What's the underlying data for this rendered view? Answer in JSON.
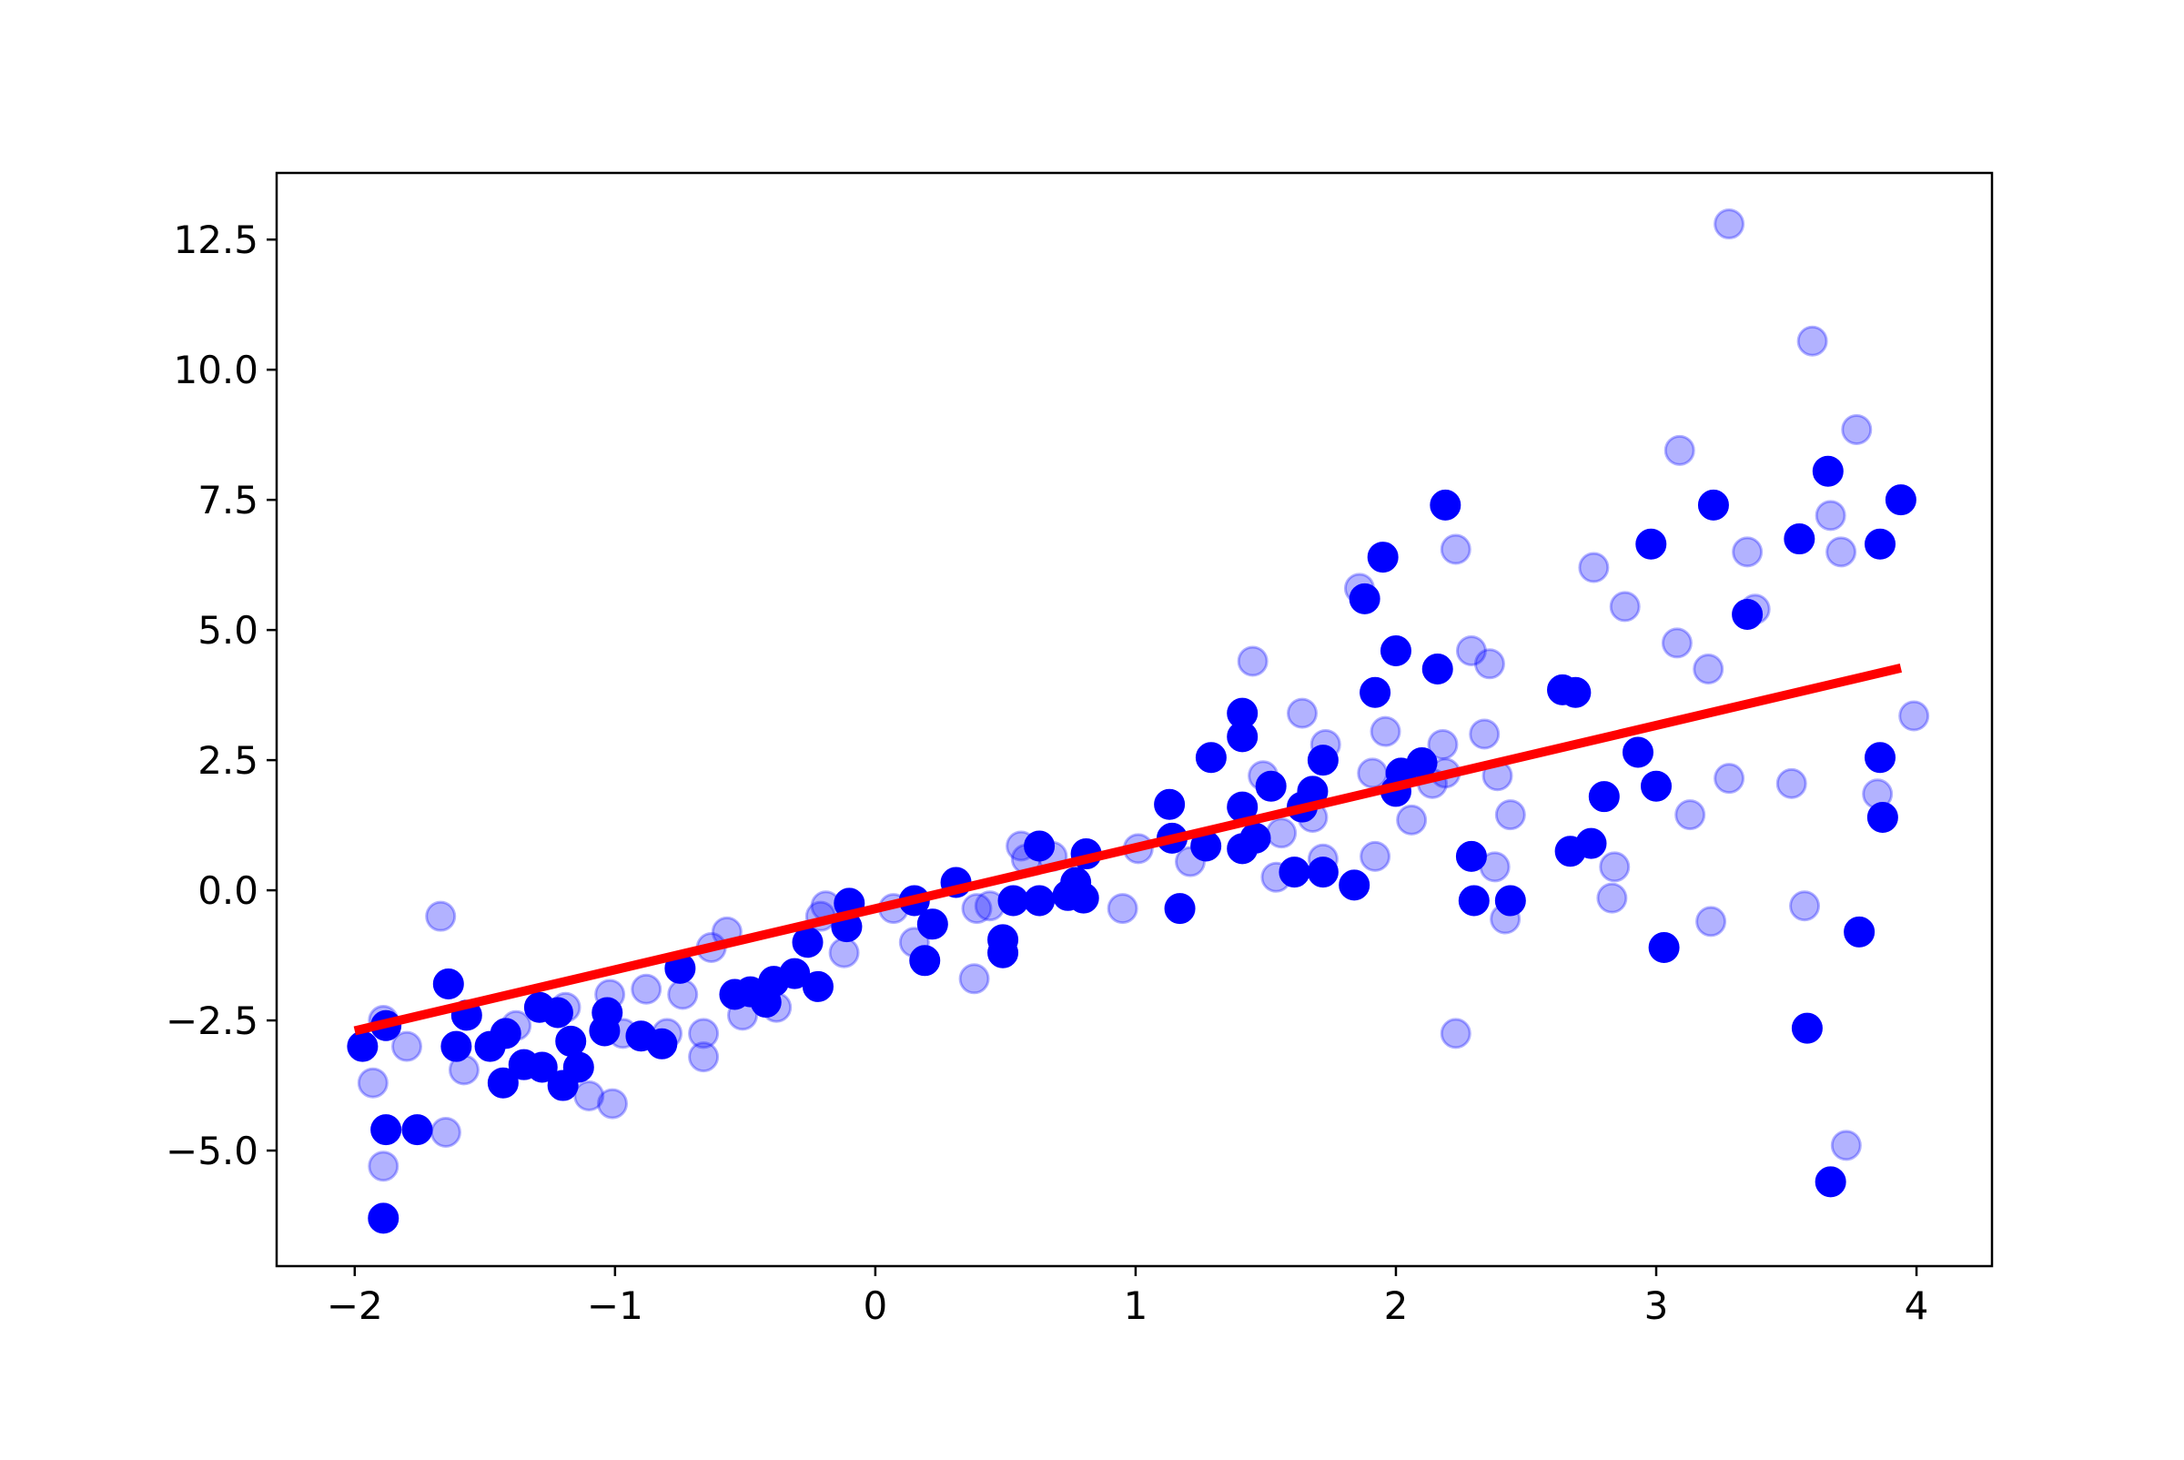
{
  "chart_data": {
    "type": "scatter",
    "xlim": [
      -2.3,
      4.29
    ],
    "ylim": [
      -7.22,
      13.78
    ],
    "xticks": [
      {
        "value": -2,
        "label": "−2"
      },
      {
        "value": -1,
        "label": "−1"
      },
      0,
      1,
      2,
      3,
      4
    ],
    "yticks": [
      {
        "value": -5,
        "label": "−5.0"
      },
      {
        "value": -2.5,
        "label": "−2.5"
      },
      {
        "value": 0,
        "label": "0.0"
      },
      2.5,
      {
        "value": 5,
        "label": "5.0"
      },
      7.5,
      {
        "value": 10,
        "label": "10.0"
      },
      12.5
    ],
    "series": [
      {
        "color": "blue",
        "alpha": 0.3,
        "x": [
          -1.93,
          -1.89,
          -1.89,
          -1.8,
          -1.67,
          -1.65,
          -1.58,
          -1.38,
          -1.19,
          -1.1,
          -1.02,
          -1.01,
          -0.97,
          -0.88,
          -0.8,
          -0.74,
          -0.66,
          -0.66,
          -0.63,
          -0.57,
          -0.51,
          -0.38,
          -0.21,
          -0.19,
          -0.12,
          0.07,
          0.15,
          0.38,
          0.39,
          0.44,
          0.56,
          0.58,
          0.68,
          0.95,
          1.01,
          1.21,
          1.45,
          1.49,
          1.54,
          1.56,
          1.64,
          1.68,
          1.72,
          1.73,
          1.86,
          1.91,
          1.92,
          1.96,
          2.06,
          2.14,
          2.18,
          2.19,
          2.23,
          2.23,
          2.29,
          2.34,
          2.36,
          2.38,
          2.39,
          2.42,
          2.44,
          2.76,
          2.84,
          2.83,
          2.88,
          3.08,
          3.09,
          3.13,
          3.2,
          3.21,
          3.28,
          3.28,
          3.35,
          3.38,
          3.52,
          3.57,
          3.6,
          3.67,
          3.71,
          3.73,
          3.77,
          3.85,
          3.99
        ],
        "y": [
          -3.7,
          -5.3,
          -2.5,
          -3.0,
          -0.5,
          -4.65,
          -3.45,
          -2.6,
          -2.25,
          -3.95,
          -2.0,
          -4.1,
          -2.75,
          -1.9,
          -2.75,
          -2.0,
          -2.75,
          -3.2,
          -1.1,
          -0.8,
          -2.4,
          -2.25,
          -0.5,
          -0.3,
          -1.2,
          -0.35,
          -1.0,
          -1.7,
          -0.35,
          -0.3,
          0.85,
          0.6,
          0.65,
          -0.35,
          0.8,
          0.55,
          4.4,
          2.2,
          0.25,
          1.1,
          3.4,
          1.4,
          0.6,
          2.8,
          5.8,
          2.25,
          0.65,
          3.05,
          1.35,
          2.05,
          2.8,
          2.25,
          6.55,
          -2.75,
          4.6,
          3.0,
          4.35,
          0.45,
          2.2,
          -0.55,
          1.45,
          6.2,
          0.45,
          -0.15,
          5.45,
          4.75,
          8.45,
          1.45,
          4.25,
          -0.6,
          2.15,
          12.8,
          6.5,
          5.4,
          2.05,
          -0.3,
          10.55,
          7.2,
          6.5,
          -4.9,
          8.85,
          1.85,
          3.35
        ]
      },
      {
        "color": "blue",
        "x": [
          -1.97,
          -1.88,
          -1.88,
          -1.89,
          -1.76,
          -1.64,
          -1.61,
          -1.57,
          -1.48,
          -1.42,
          -1.43,
          -1.35,
          -1.29,
          -1.28,
          -1.22,
          -1.2,
          -1.17,
          -1.14,
          -1.04,
          -1.03,
          -0.9,
          -0.82,
          -0.75,
          -0.54,
          -0.48,
          -0.42,
          -0.39,
          -0.31,
          -0.26,
          -0.22,
          -0.11,
          -0.1,
          0.15,
          0.19,
          0.22,
          0.31,
          0.49,
          0.49,
          0.53,
          0.63,
          0.63,
          0.74,
          0.77,
          0.8,
          0.81,
          1.13,
          1.14,
          1.17,
          1.27,
          1.29,
          1.41,
          1.41,
          1.41,
          1.41,
          1.46,
          1.52,
          1.61,
          1.64,
          1.68,
          1.72,
          1.72,
          1.84,
          1.88,
          1.92,
          1.95,
          2.0,
          2.0,
          2.02,
          2.1,
          2.16,
          2.19,
          2.29,
          2.3,
          2.44,
          2.64,
          2.69,
          2.67,
          2.75,
          2.8,
          2.93,
          2.98,
          3.0,
          3.03,
          3.22,
          3.35,
          3.55,
          3.58,
          3.66,
          3.67,
          3.78,
          3.86,
          3.86,
          3.87,
          3.94
        ],
        "y": [
          -3.0,
          -2.6,
          -4.6,
          -6.3,
          -4.6,
          -1.8,
          -3.0,
          -2.4,
          -3.0,
          -2.75,
          -3.7,
          -3.35,
          -2.25,
          -3.4,
          -2.35,
          -3.75,
          -2.9,
          -3.4,
          -2.7,
          -2.35,
          -2.8,
          -2.95,
          -1.5,
          -2.0,
          -1.95,
          -2.15,
          -1.75,
          -1.6,
          -1.0,
          -1.85,
          -0.7,
          -0.25,
          -0.2,
          -1.35,
          -0.65,
          0.15,
          -0.95,
          -1.2,
          -0.2,
          0.85,
          -0.2,
          -0.1,
          0.15,
          -0.15,
          0.7,
          1.65,
          1.0,
          -0.35,
          0.85,
          2.55,
          2.95,
          3.4,
          1.6,
          0.8,
          1.0,
          2.0,
          0.35,
          1.6,
          1.9,
          2.5,
          0.35,
          0.1,
          5.6,
          3.8,
          6.4,
          4.6,
          1.9,
          2.25,
          2.45,
          4.25,
          7.4,
          0.65,
          -0.2,
          -0.2,
          3.85,
          3.8,
          0.75,
          0.9,
          1.8,
          2.65,
          6.65,
          2.0,
          -1.1,
          7.4,
          5.3,
          6.75,
          -2.65,
          8.05,
          -5.6,
          -0.8,
          6.65,
          2.55,
          1.4,
          7.5
        ]
      },
      {
        "color": "red",
        "style": "line",
        "x": [
          -2.0,
          3.94
        ],
        "y": [
          -2.7,
          4.27
        ]
      }
    ]
  }
}
